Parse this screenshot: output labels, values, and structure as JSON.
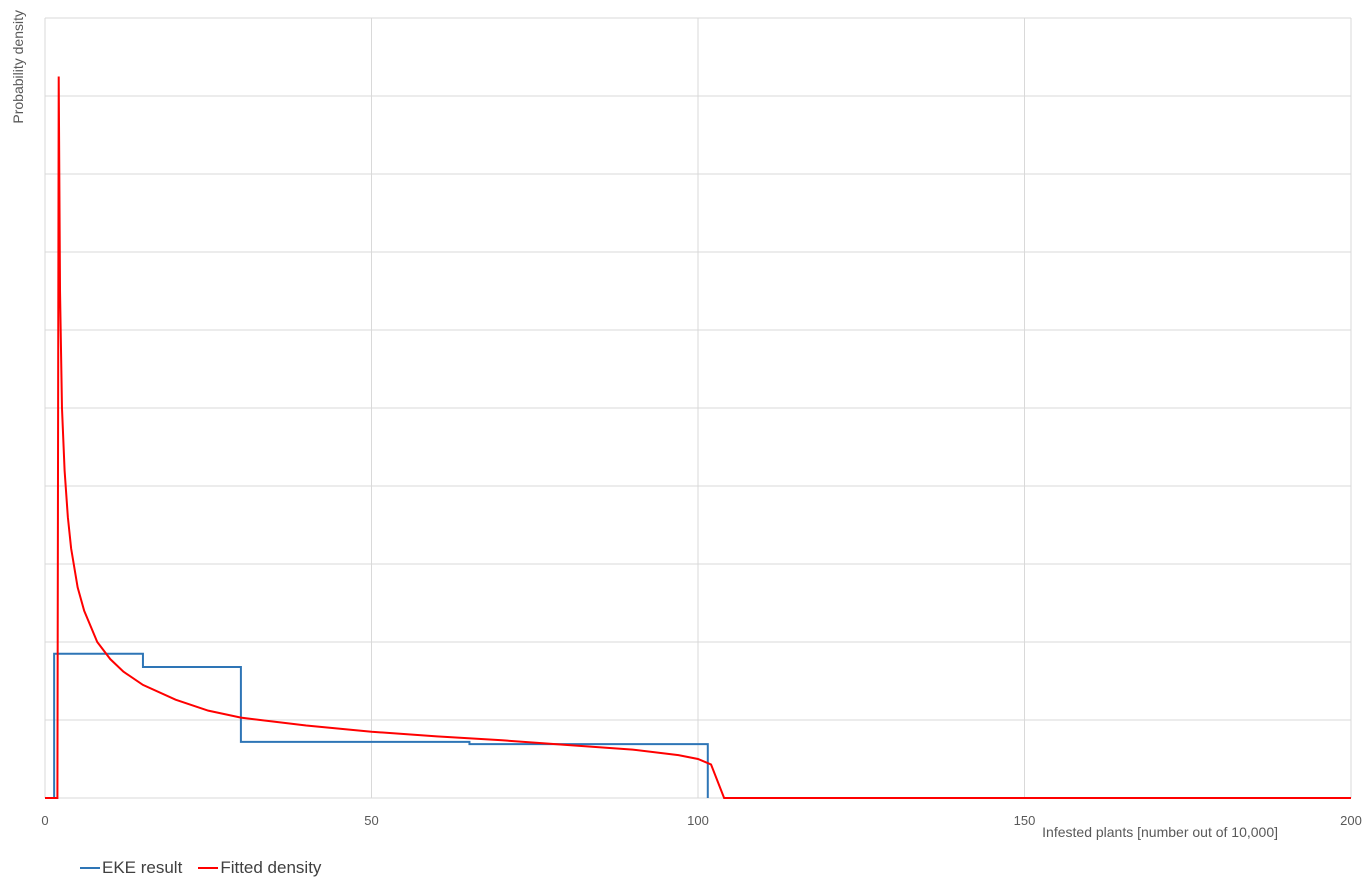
{
  "chart_data": {
    "type": "line",
    "title": "",
    "xlabel": "Infested plants [number out of 10,000]",
    "ylabel": "Probability density",
    "xlim": [
      0,
      200
    ],
    "ylim": [
      0,
      1
    ],
    "x_ticks": [
      0,
      50,
      100,
      150,
      200
    ],
    "y_gridlines": 10,
    "grid": true,
    "legend_position": "bottom-left",
    "series": [
      {
        "name": "EKE result",
        "color": "#2E75B6",
        "style": "step",
        "points": [
          [
            1.4,
            0
          ],
          [
            1.4,
            0.185
          ],
          [
            15,
            0.185
          ],
          [
            15,
            0.168
          ],
          [
            30,
            0.168
          ],
          [
            30,
            0.072
          ],
          [
            65,
            0.072
          ],
          [
            65,
            0.069
          ],
          [
            101.5,
            0.069
          ],
          [
            101.5,
            0
          ]
        ]
      },
      {
        "name": "Fitted density",
        "color": "#FF0000",
        "style": "line",
        "points": [
          [
            0,
            0
          ],
          [
            1.9,
            0
          ],
          [
            2.1,
            0.925
          ],
          [
            2.3,
            0.65
          ],
          [
            2.6,
            0.5
          ],
          [
            3,
            0.42
          ],
          [
            3.5,
            0.36
          ],
          [
            4,
            0.32
          ],
          [
            5,
            0.27
          ],
          [
            6,
            0.24
          ],
          [
            7,
            0.22
          ],
          [
            8,
            0.2
          ],
          [
            10,
            0.178
          ],
          [
            12,
            0.162
          ],
          [
            15,
            0.145
          ],
          [
            20,
            0.126
          ],
          [
            25,
            0.112
          ],
          [
            30,
            0.103
          ],
          [
            40,
            0.093
          ],
          [
            50,
            0.085
          ],
          [
            60,
            0.079
          ],
          [
            70,
            0.074
          ],
          [
            80,
            0.068
          ],
          [
            90,
            0.062
          ],
          [
            97,
            0.055
          ],
          [
            100,
            0.05
          ],
          [
            102,
            0.043
          ],
          [
            104,
            0
          ],
          [
            200,
            0
          ]
        ]
      }
    ]
  }
}
